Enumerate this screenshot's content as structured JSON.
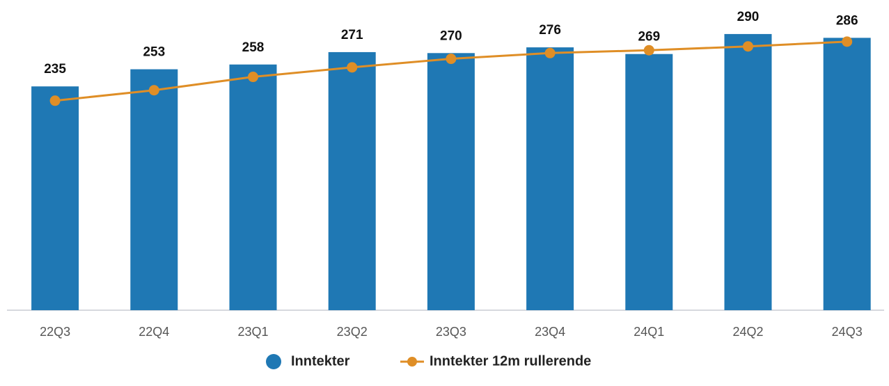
{
  "chart_data": {
    "type": "bar_line",
    "categories": [
      "22Q3",
      "22Q4",
      "23Q1",
      "23Q2",
      "23Q3",
      "23Q4",
      "24Q1",
      "24Q2",
      "24Q3"
    ],
    "series": [
      {
        "name": "Inntekter",
        "type": "bar",
        "color": "#1f78b4",
        "values": [
          235,
          253,
          258,
          271,
          270,
          276,
          269,
          290,
          286
        ]
      },
      {
        "name": "Inntekter 12m rullerende",
        "type": "line",
        "color": "#df8e26",
        "values": [
          220,
          231,
          245,
          255,
          264,
          270,
          273,
          277,
          282
        ]
      }
    ],
    "ylim": [
      0,
      325
    ],
    "legend": "bottom"
  }
}
